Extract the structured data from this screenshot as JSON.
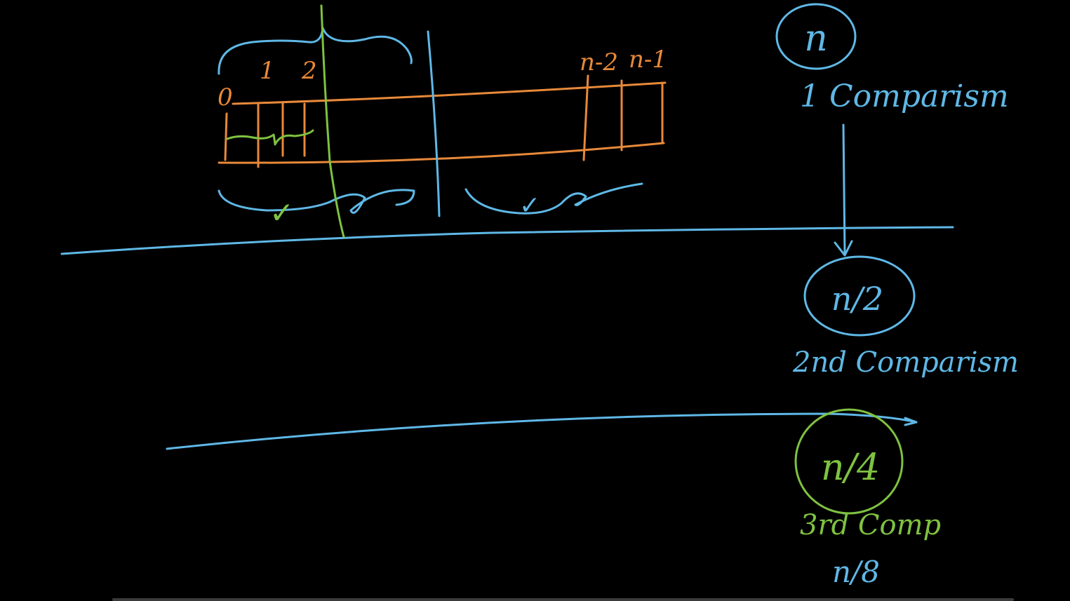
{
  "colors": {
    "background": "#000000",
    "blue": "#5fb8e6",
    "orange": "#e8893a",
    "green": "#7fc241"
  },
  "array": {
    "index_0": "0",
    "index_1": "1",
    "index_2": "2",
    "index_n2": "n-2",
    "index_n1": "n-1",
    "checks": [
      "✓",
      "✓"
    ]
  },
  "levels": [
    {
      "node": "n",
      "caption": "1 Comparism"
    },
    {
      "node": "n/2",
      "caption": "2nd Comparism"
    },
    {
      "node": "n/4",
      "caption": "3rd Comp"
    }
  ],
  "next_level": "n/8"
}
